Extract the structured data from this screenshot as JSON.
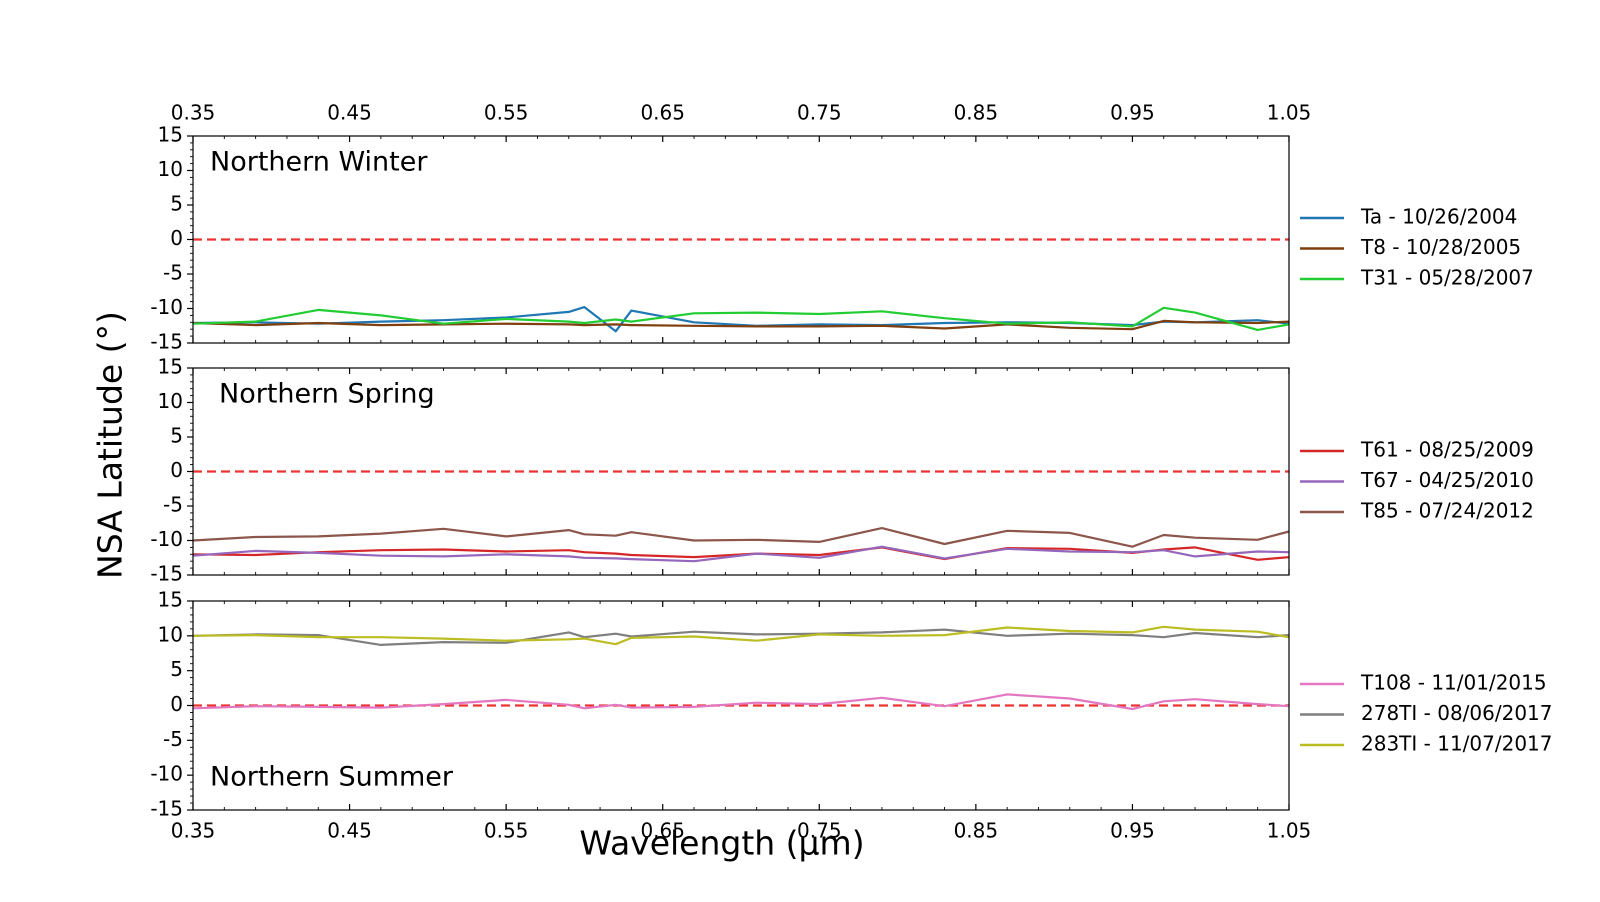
{
  "chart_data": {
    "type": "line",
    "ylabel": "NSA Latitude (°)",
    "xlabel": "Wavelength (μm)",
    "xlim": [
      0.35,
      1.05
    ],
    "ylim": [
      -15,
      15
    ],
    "x_ticks": [
      "0.35",
      "0.45",
      "0.55",
      "0.65",
      "0.75",
      "0.85",
      "0.95",
      "1.05"
    ],
    "y_ticks": [
      "15",
      "10",
      "5",
      "0",
      "-5",
      "-10",
      "-15"
    ],
    "reference_line": {
      "y": 0,
      "style": "dashed",
      "color": "#ee3333"
    },
    "wavelengths": [
      0.35,
      0.39,
      0.43,
      0.47,
      0.51,
      0.55,
      0.59,
      0.6,
      0.62,
      0.63,
      0.67,
      0.71,
      0.75,
      0.79,
      0.83,
      0.87,
      0.91,
      0.95,
      0.97,
      0.99,
      1.03,
      1.05
    ],
    "panels": [
      {
        "label": "Northern Winter",
        "series": [
          {
            "name": "Ta - 10/26/2004",
            "color": "#1f77b4",
            "values": [
              -12.1,
              -12.0,
              -12.2,
              -11.9,
              -11.7,
              -11.3,
              -10.5,
              -9.8,
              -13.3,
              -10.3,
              -12.0,
              -12.5,
              -12.3,
              -12.4,
              -12.1,
              -12.0,
              -12.1,
              -12.4,
              -11.9,
              -12.0,
              -11.7,
              -12.2
            ]
          },
          {
            "name": "T8 - 10/28/2005",
            "color": "#7f3f0f",
            "values": [
              -12.1,
              -12.4,
              -12.1,
              -12.4,
              -12.3,
              -12.2,
              -12.3,
              -12.4,
              -12.3,
              -12.4,
              -12.5,
              -12.6,
              -12.6,
              -12.5,
              -12.9,
              -12.3,
              -12.8,
              -13.0,
              -11.8,
              -12.0,
              -12.1,
              -11.9
            ]
          },
          {
            "name": "T31 - 05/28/2007",
            "color": "#22cc33",
            "values": [
              -12.2,
              -11.9,
              -10.2,
              -11.0,
              -12.2,
              -11.5,
              -11.9,
              -12.1,
              -11.6,
              -11.9,
              -10.7,
              -10.6,
              -10.8,
              -10.4,
              -11.4,
              -12.2,
              -12.0,
              -12.6,
              -9.9,
              -10.6,
              -13.1,
              -12.3
            ]
          }
        ]
      },
      {
        "label": "Northern Spring",
        "series": [
          {
            "name": "T61 - 08/25/2009",
            "color": "#d62728",
            "values": [
              -12.0,
              -12.1,
              -11.7,
              -11.4,
              -11.3,
              -11.6,
              -11.4,
              -11.7,
              -11.9,
              -12.1,
              -12.4,
              -11.9,
              -12.1,
              -11.0,
              -12.7,
              -11.1,
              -11.2,
              -11.8,
              -11.3,
              -11.0,
              -12.8,
              -12.4
            ]
          },
          {
            "name": "T67 - 04/25/2010",
            "color": "#9467bd",
            "values": [
              -12.2,
              -11.5,
              -11.8,
              -12.2,
              -12.3,
              -12.0,
              -12.3,
              -12.5,
              -12.6,
              -12.7,
              -13.0,
              -11.9,
              -12.5,
              -10.9,
              -12.6,
              -11.2,
              -11.6,
              -11.7,
              -11.4,
              -12.3,
              -11.6,
              -11.7
            ]
          },
          {
            "name": "T85 - 07/24/2012",
            "color": "#8c564b",
            "values": [
              -10.0,
              -9.5,
              -9.4,
              -9.0,
              -8.3,
              -9.4,
              -8.5,
              -9.1,
              -9.3,
              -8.8,
              -10.0,
              -9.9,
              -10.2,
              -8.2,
              -10.5,
              -8.6,
              -8.9,
              -10.9,
              -9.2,
              -9.6,
              -9.9,
              -8.7
            ]
          }
        ]
      },
      {
        "label": "Northern Summer",
        "series": [
          {
            "name": "T108 - 11/01/2015",
            "color": "#e377c2",
            "values": [
              -0.4,
              -0.1,
              -0.2,
              -0.3,
              0.2,
              0.8,
              0.1,
              -0.4,
              0.1,
              -0.3,
              -0.2,
              0.4,
              0.2,
              1.1,
              -0.1,
              1.6,
              1.0,
              -0.5,
              0.6,
              0.9,
              0.2,
              -0.1
            ]
          },
          {
            "name": "278TI - 08/06/2017",
            "color": "#7f7f7f",
            "values": [
              10.0,
              10.2,
              10.1,
              8.7,
              9.1,
              9.0,
              10.5,
              9.8,
              10.3,
              9.9,
              10.6,
              10.2,
              10.3,
              10.5,
              10.9,
              10.0,
              10.3,
              10.1,
              9.8,
              10.4,
              9.8,
              10.1
            ]
          },
          {
            "name": "283TI - 11/07/2017",
            "color": "#bcbd22",
            "values": [
              10.0,
              10.1,
              9.8,
              9.8,
              9.6,
              9.3,
              9.5,
              9.6,
              8.8,
              9.7,
              9.9,
              9.3,
              10.2,
              10.0,
              10.1,
              11.2,
              10.7,
              10.5,
              11.3,
              10.9,
              10.6,
              9.8
            ]
          }
        ]
      }
    ]
  }
}
